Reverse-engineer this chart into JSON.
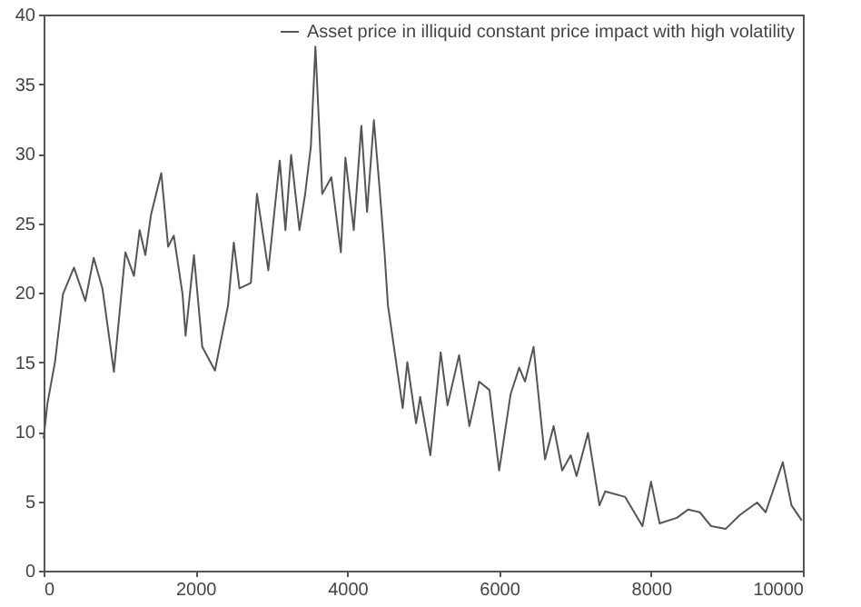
{
  "chart_data": {
    "type": "line",
    "legend": "top right",
    "grid": false,
    "marker": "none",
    "line_style": "solid",
    "xlim": [
      0,
      10000
    ],
    "xticks": [
      0,
      2000,
      4000,
      6000,
      8000,
      10000
    ],
    "ylim": [
      0,
      40
    ],
    "yticks": [
      0,
      5,
      10,
      15,
      20,
      25,
      30,
      35,
      40
    ],
    "series": [
      {
        "name": "Asset price in illiquid constant price impact with high volatility",
        "color": "#555555",
        "x": [
          0,
          50,
          150,
          255,
          400,
          550,
          660,
          775,
          926,
          1077,
          1190,
          1265,
          1340,
          1415,
          1550,
          1640,
          1715,
          1830,
          1870,
          1980,
          2090,
          2257,
          2430,
          2505,
          2580,
          2730,
          2810,
          2960,
          3110,
          3185,
          3260,
          3370,
          3445,
          3520,
          3580,
          3670,
          3790,
          3915,
          3975,
          4085,
          4185,
          4260,
          4350,
          4425,
          4490,
          4535,
          4730,
          4790,
          4906,
          4960,
          5094,
          5230,
          5320,
          5472,
          5608,
          5736,
          5872,
          6000,
          6151,
          6264,
          6340,
          6453,
          6604,
          6717,
          6830,
          6943,
          7019,
          7170,
          7321,
          7396,
          7660,
          7887,
          8000,
          8113,
          8340,
          8491,
          8642,
          8793,
          8982,
          9170,
          9397,
          9510,
          9736,
          9850,
          9986
        ],
        "values": [
          9.5,
          12,
          15,
          19.9,
          21.8,
          19.4,
          22.5,
          20.3,
          14.3,
          22.9,
          21.2,
          24.5,
          22.7,
          25.6,
          28.6,
          23.3,
          24.1,
          19.9,
          16.9,
          22.7,
          16.1,
          14.4,
          19.1,
          23.6,
          20.3,
          20.7,
          27.1,
          21.6,
          29.5,
          24.5,
          29.9,
          24.5,
          27.1,
          30.5,
          37.7,
          27.1,
          28.3,
          22.9,
          29.7,
          24.5,
          32,
          25.8,
          32.4,
          27.5,
          22.9,
          19.1,
          11.7,
          15,
          10.6,
          12.5,
          8.3,
          15.7,
          11.9,
          15.5,
          10.4,
          13.6,
          13,
          7.2,
          12.7,
          14.6,
          13.6,
          16.1,
          8,
          10.4,
          7.2,
          8.3,
          6.8,
          9.9,
          4.7,
          5.7,
          5.3,
          3.2,
          6.4,
          3.4,
          3.8,
          4.4,
          4.2,
          3.2,
          3,
          4,
          4.9,
          4.2,
          7.8,
          4.7,
          3.6
        ]
      }
    ]
  }
}
